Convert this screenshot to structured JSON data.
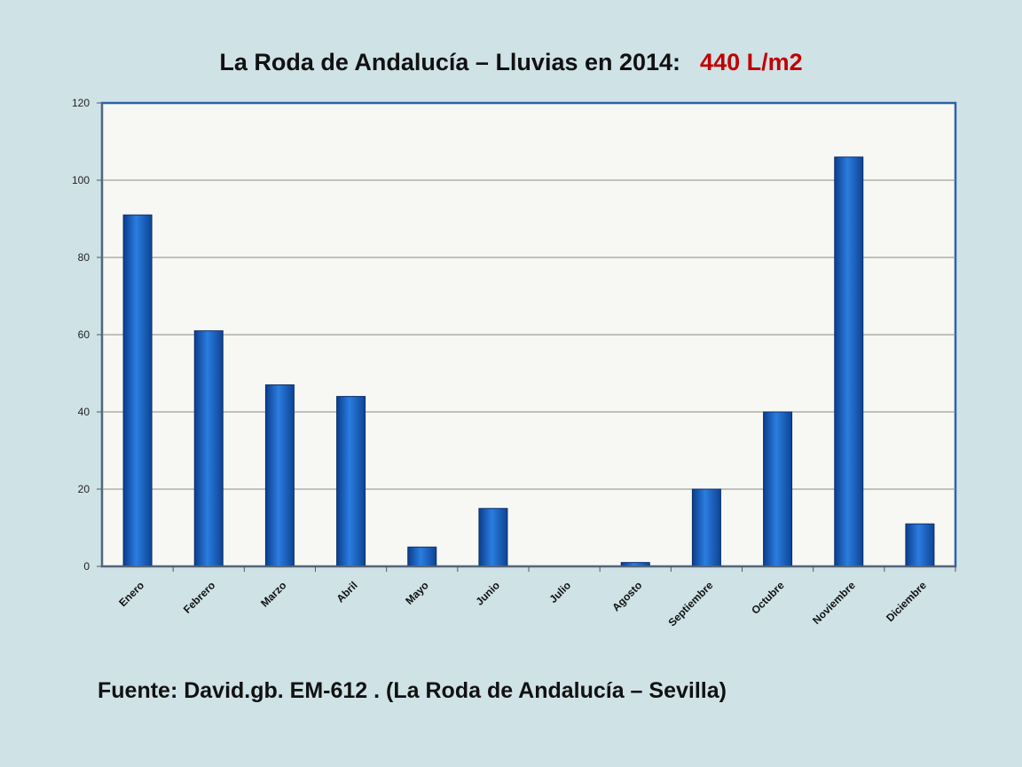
{
  "title": {
    "main": "La Roda de Andalucía – Lluvias en 2014:",
    "total": "440 L/m2"
  },
  "source": "Fuente: David.gb. EM-612 . (La Roda de Andalucía – Sevilla)",
  "colors": {
    "background": "#cfe2e6",
    "plot_background": "#f7f7f3",
    "plot_border": "#2b63a8",
    "bar": "#1f66c9",
    "title_accent": "#c00000"
  },
  "chart_data": {
    "type": "bar",
    "title": "La Roda de Andalucía – Lluvias en 2014: 440 L/m2",
    "xlabel": "",
    "ylabel": "",
    "categories": [
      "Enero",
      "Febrero",
      "Marzo",
      "Abril",
      "Mayo",
      "Junio",
      "Julio",
      "Agosto",
      "Septiembre",
      "Octubre",
      "Noviembre",
      "Diciembre"
    ],
    "values": [
      91,
      61,
      47,
      44,
      5,
      15,
      0,
      1,
      20,
      40,
      106,
      11
    ],
    "ylim": [
      0,
      120
    ],
    "yticks": [
      0,
      20,
      40,
      60,
      80,
      100,
      120
    ],
    "grid": true,
    "legend": "none"
  }
}
